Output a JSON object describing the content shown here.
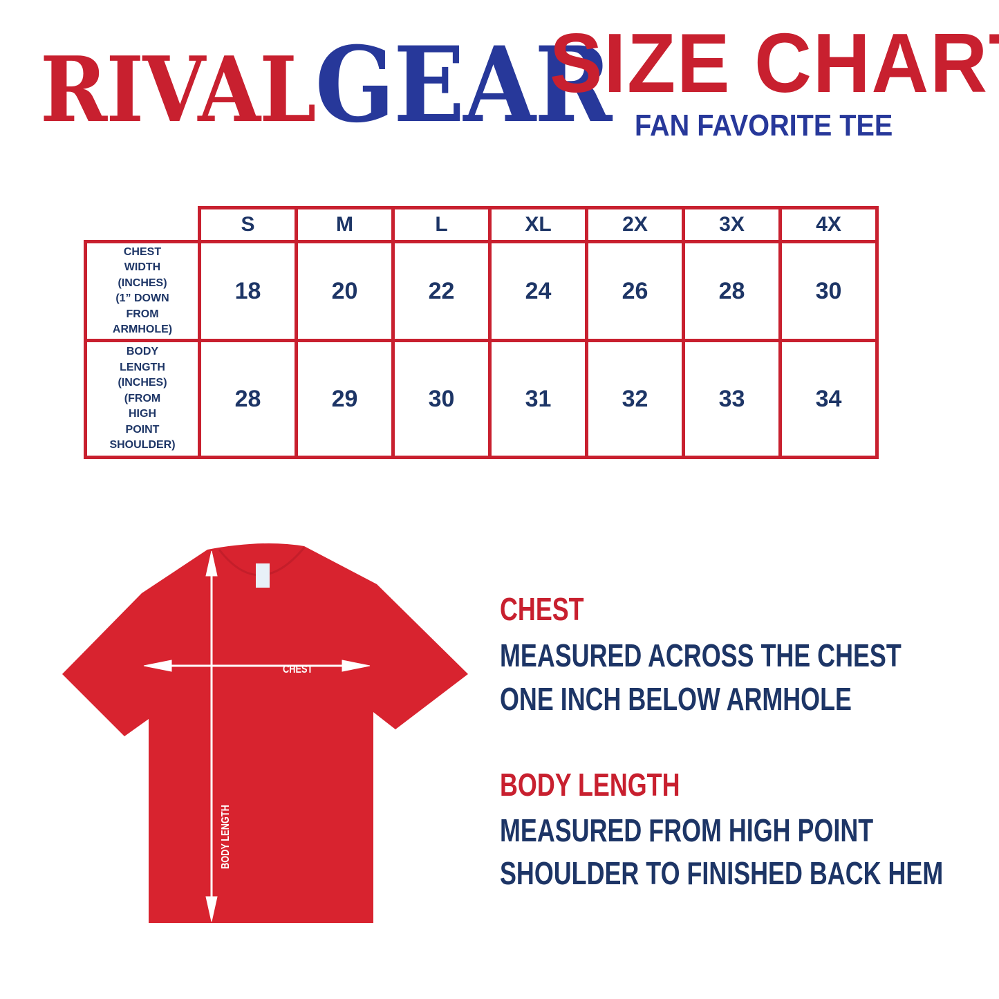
{
  "brand": {
    "logo_part1": "RIVAL",
    "logo_part2": "GEAR"
  },
  "header": {
    "title": "SIZE CHART",
    "subtitle": "FAN FAVORITE TEE"
  },
  "table": {
    "sizes": [
      "S",
      "M",
      "L",
      "XL",
      "2X",
      "3X",
      "4X"
    ],
    "rows": [
      {
        "label_lines": [
          "CHEST",
          "WIDTH",
          "(INCHES)",
          "(1” DOWN",
          "FROM",
          "ARMHOLE)"
        ],
        "values": [
          "18",
          "20",
          "22",
          "24",
          "26",
          "28",
          "30"
        ]
      },
      {
        "label_lines": [
          "BODY",
          "LENGTH",
          "(INCHES)",
          "(FROM",
          "HIGH",
          "POINT",
          "SHOULDER)"
        ],
        "values": [
          "28",
          "29",
          "30",
          "31",
          "32",
          "33",
          "34"
        ]
      }
    ]
  },
  "diagram": {
    "chest_label": "CHEST",
    "length_label": "BODY LENGTH",
    "shirt_color": "#d8232f"
  },
  "measurements": {
    "chest": {
      "heading": "CHEST",
      "lines": [
        "MEASURED ACROSS THE CHEST",
        "ONE INCH BELOW ARMHOLE"
      ]
    },
    "body_length": {
      "heading": "BODY LENGTH",
      "lines": [
        "MEASURED FROM HIGH POINT",
        "SHOULDER TO FINISHED BACK HEM"
      ]
    }
  },
  "colors": {
    "red": "#c8202f",
    "blue": "#27389a",
    "navy": "#1d3566"
  }
}
